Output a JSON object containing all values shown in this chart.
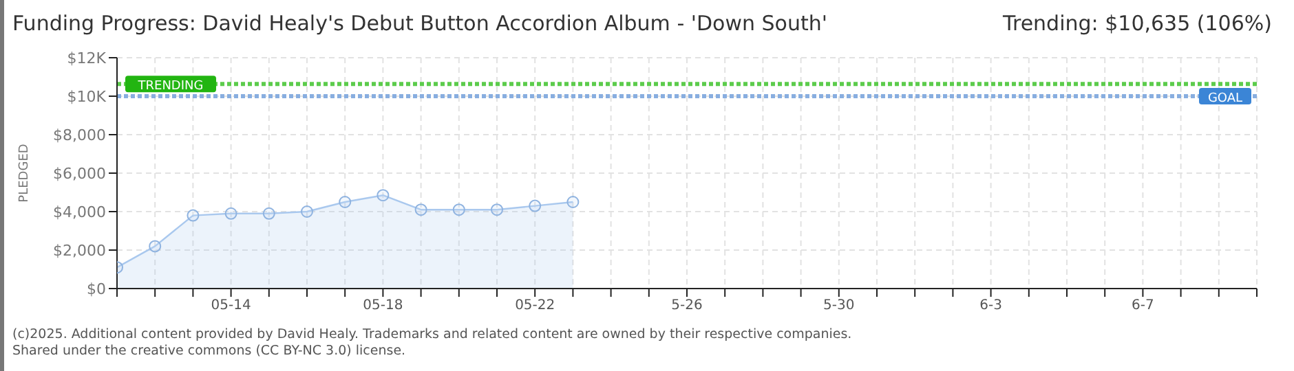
{
  "chart_data": {
    "type": "area",
    "title": "Funding Progress: David Healy's Debut Button Accordion Album - 'Down South'",
    "subtitle": "Trending: $10,635 (106%)",
    "ylabel": "PLEDGED",
    "categories": [
      null,
      null,
      null,
      "05-14",
      null,
      null,
      null,
      "05-18",
      null,
      null,
      null,
      "05-22",
      null,
      null,
      null,
      "5-26",
      null,
      null,
      null,
      "5-30",
      null,
      null,
      null,
      "6-3",
      null,
      null,
      null,
      "6-7",
      null,
      null,
      null
    ],
    "series": [
      {
        "color": "#a9c8ee",
        "values": [
          1100,
          2200,
          3800,
          3900,
          3900,
          4000,
          4500,
          4850,
          4100,
          4100,
          4100,
          4300,
          4500,
          null,
          null,
          null,
          null,
          null,
          null,
          null,
          null,
          null,
          null,
          null,
          null,
          null,
          null,
          null,
          null,
          null,
          null
        ]
      }
    ],
    "ylim": [
      0,
      12000
    ],
    "yticks": [
      {
        "value": 0,
        "label": "$0"
      },
      {
        "value": 2000,
        "label": "$2,000"
      },
      {
        "value": 4000,
        "label": "$4,000"
      },
      {
        "value": 6000,
        "label": "$6,000"
      },
      {
        "value": 8000,
        "label": "$8,000"
      },
      {
        "value": 10000,
        "label": "$10K"
      },
      {
        "value": 12000,
        "label": "$12K"
      }
    ],
    "ref_lines": [
      {
        "axis": "y",
        "value": 10635,
        "label": "TRENDING",
        "color": "#5ccc4c",
        "line_style": "dotted"
      },
      {
        "axis": "y",
        "value": 10000,
        "label": "GOAL",
        "color": "#88aee0",
        "line_style": "dotted"
      }
    ],
    "grid": true,
    "marker": "circle",
    "annotations": [
      "(c)2025. Additional content provided by David Healy. Trademarks and related content are owned by their respective companies.",
      "Shared under the creative commons (CC BY-NC 3.0) license."
    ]
  }
}
